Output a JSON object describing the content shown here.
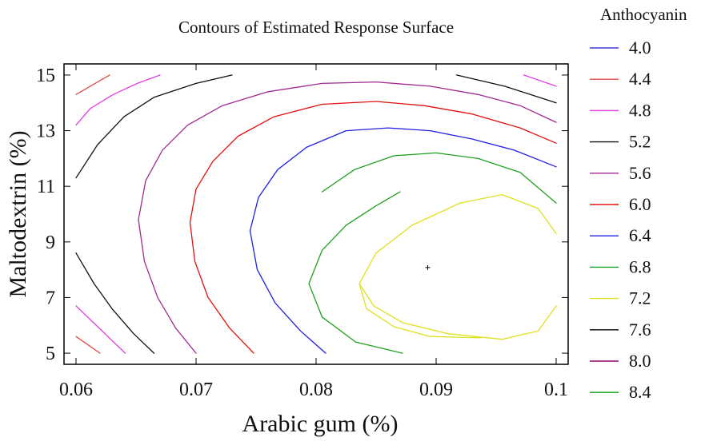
{
  "chart_data": {
    "type": "contour",
    "title": "Contours of Estimated Response Surface",
    "xlabel": "Arabic gum (%)",
    "ylabel": "Maltodextrin (%)",
    "xlim": [
      0.059,
      0.101
    ],
    "ylim": [
      4.6,
      15.4
    ],
    "x_ticks": [
      0.06,
      0.07,
      0.08,
      0.09,
      0.1
    ],
    "x_tick_labels": [
      "0.06",
      "0.07",
      "0.08",
      "0.09",
      "0.1"
    ],
    "y_ticks": [
      5,
      7,
      9,
      11,
      13,
      15
    ],
    "y_tick_labels": [
      "5",
      "7",
      "9",
      "11",
      "13",
      "15"
    ],
    "legend_title": "Anthocyanin",
    "legend_position": "right",
    "grid": false,
    "optimum_marker": {
      "x": 0.0893,
      "y": 8.08
    },
    "legend": [
      {
        "label": "4.0",
        "color": "#3a3ad8"
      },
      {
        "label": "4.4",
        "color": "#e04848"
      },
      {
        "label": "4.8",
        "color": "#e040e0"
      },
      {
        "label": "5.2",
        "color": "#101010"
      },
      {
        "label": "5.6",
        "color": "#a02a90"
      },
      {
        "label": "6.0",
        "color": "#e01010"
      },
      {
        "label": "6.4",
        "color": "#2020e0"
      },
      {
        "label": "6.8",
        "color": "#20a020"
      },
      {
        "label": "7.2",
        "color": "#e0e020"
      },
      {
        "label": "7.6",
        "color": "#000000"
      },
      {
        "label": "8.0",
        "color": "#900070"
      },
      {
        "label": "8.4",
        "color": "#10a010"
      }
    ],
    "contours": [
      {
        "level": "4.4",
        "color": "#e04848",
        "x": [
          0.06,
          0.062
        ],
        "y": [
          5.6,
          5.0
        ]
      },
      {
        "level": "4.4",
        "color": "#e04848",
        "x": [
          0.06,
          0.0628
        ],
        "y": [
          14.3,
          15.0
        ]
      },
      {
        "level": "4.8",
        "color": "#e040e0",
        "x": [
          0.06,
          0.0641
        ],
        "y": [
          6.7,
          5.0
        ]
      },
      {
        "level": "4.8",
        "color": "#e040e0",
        "x": [
          0.06,
          0.0612,
          0.0631,
          0.0651,
          0.067
        ],
        "y": [
          13.2,
          13.8,
          14.3,
          14.7,
          15.0
        ]
      },
      {
        "level": "4.8",
        "color": "#e040e0",
        "x": [
          0.0973,
          0.1
        ],
        "y": [
          15.0,
          14.6
        ]
      },
      {
        "level": "5.2",
        "color": "#101010",
        "x": [
          0.06,
          0.0615,
          0.063,
          0.0648,
          0.0665
        ],
        "y": [
          8.6,
          7.5,
          6.6,
          5.7,
          5.0
        ]
      },
      {
        "level": "5.2",
        "color": "#101010",
        "x": [
          0.06,
          0.0618,
          0.064,
          0.0665,
          0.07,
          0.073
        ],
        "y": [
          11.3,
          12.5,
          13.5,
          14.2,
          14.7,
          15.0
        ]
      },
      {
        "level": "5.2",
        "color": "#101010",
        "x": [
          0.0917,
          0.0957,
          0.1
        ],
        "y": [
          15.0,
          14.6,
          14.0
        ]
      },
      {
        "level": "5.6",
        "color": "#a02a90",
        "x": [
          0.0652,
          0.0658,
          0.0672,
          0.0693,
          0.0722,
          0.076,
          0.0805,
          0.085,
          0.0895,
          0.0935,
          0.097,
          0.1
        ],
        "y": [
          9.8,
          11.2,
          12.3,
          13.2,
          13.9,
          14.4,
          14.7,
          14.75,
          14.6,
          14.3,
          13.9,
          13.3
        ]
      },
      {
        "level": "5.6",
        "color": "#a02a90",
        "x": [
          0.0652,
          0.0657,
          0.0668,
          0.0683,
          0.07
        ],
        "y": [
          9.8,
          8.3,
          7.0,
          5.9,
          5.0
        ]
      },
      {
        "level": "6.0",
        "color": "#e01010",
        "x": [
          0.0695,
          0.07,
          0.0714,
          0.0735,
          0.0765,
          0.0805,
          0.085,
          0.089,
          0.093,
          0.097,
          0.1
        ],
        "y": [
          9.7,
          10.9,
          11.9,
          12.8,
          13.5,
          13.95,
          14.05,
          13.9,
          13.6,
          13.1,
          12.55
        ]
      },
      {
        "level": "6.0",
        "color": "#e01010",
        "x": [
          0.0695,
          0.0699,
          0.071,
          0.0728,
          0.0748
        ],
        "y": [
          9.7,
          8.3,
          7.0,
          5.9,
          5.0
        ]
      },
      {
        "level": "6.4",
        "color": "#2020e0",
        "x": [
          0.0745,
          0.0752,
          0.0768,
          0.0792,
          0.0825,
          0.086,
          0.0895,
          0.093,
          0.0965,
          0.1
        ],
        "y": [
          9.4,
          10.6,
          11.6,
          12.4,
          13.0,
          13.1,
          13.0,
          12.7,
          12.3,
          11.7
        ]
      },
      {
        "level": "6.4",
        "color": "#2020e0",
        "x": [
          0.0745,
          0.0751,
          0.0766,
          0.0787,
          0.0808
        ],
        "y": [
          9.4,
          8.0,
          6.8,
          5.8,
          5.0
        ]
      },
      {
        "level": "6.8",
        "color": "#20a020",
        "x": [
          0.0872,
          0.0833,
          0.0805,
          0.0794,
          0.0805,
          0.0825,
          0.085,
          0.087
        ],
        "y": [
          5.0,
          5.4,
          6.3,
          7.5,
          8.7,
          9.6,
          10.3,
          10.8
        ]
      },
      {
        "level": "6.8",
        "color": "#20a020",
        "x": [
          0.0805,
          0.0832,
          0.0865,
          0.09,
          0.0935,
          0.097,
          0.1
        ],
        "y": [
          10.8,
          11.6,
          12.1,
          12.2,
          12.0,
          11.5,
          10.4
        ]
      },
      {
        "level": "7.2",
        "color": "#e0e020",
        "x": [
          0.0937,
          0.0895,
          0.0865,
          0.0842,
          0.0836,
          0.085,
          0.088,
          0.092,
          0.0955,
          0.0985,
          0.1
        ],
        "y": [
          5.55,
          5.6,
          5.95,
          6.6,
          7.5,
          8.6,
          9.6,
          10.4,
          10.7,
          10.2,
          9.3
        ]
      },
      {
        "level": "7.2",
        "color": "#e0e020",
        "x": [
          0.0836,
          0.0848,
          0.0872,
          0.091,
          0.0955,
          0.0985,
          0.1
        ],
        "y": [
          7.5,
          6.7,
          6.1,
          5.7,
          5.5,
          5.8,
          6.7
        ]
      }
    ]
  }
}
